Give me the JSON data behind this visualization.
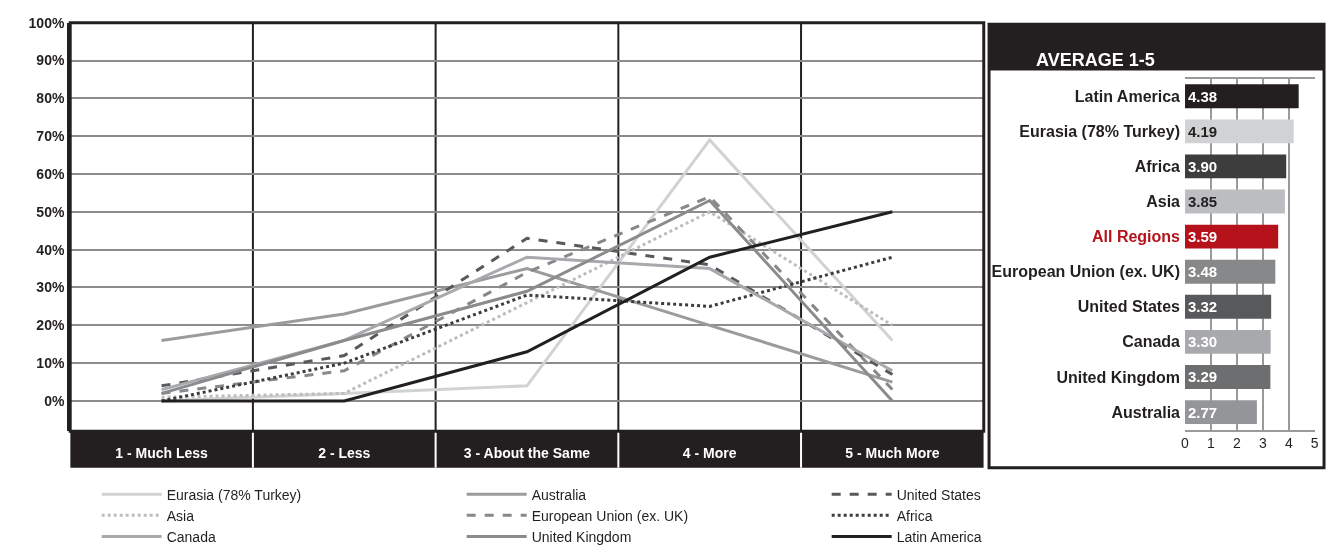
{
  "chart_data": [
    {
      "type": "line",
      "categories": [
        "1 - Much Less",
        "2 - Less",
        "3 - About the Same",
        "4 - More",
        "5 - Much More"
      ],
      "ylim": [
        -8,
        100
      ],
      "yticks": [
        {
          "value": 0,
          "label": "0%"
        },
        {
          "value": 10,
          "label": "10%"
        },
        {
          "value": 20,
          "label": "20%"
        },
        {
          "value": 30,
          "label": "30%"
        },
        {
          "value": 40,
          "label": "40%"
        },
        {
          "value": 50,
          "label": "50%"
        },
        {
          "value": 60,
          "label": "60%"
        },
        {
          "value": 70,
          "label": "70%"
        },
        {
          "value": 80,
          "label": "80%"
        },
        {
          "value": 90,
          "label": "90%"
        },
        {
          "value": 100,
          "label": "100%"
        }
      ],
      "grid": "y",
      "legend": "bottom",
      "marker": "none",
      "series": [
        {
          "name": "Eurasia (78% Turkey)",
          "color": "#d1d2d4",
          "line_style": "solid",
          "values": [
            0,
            2,
            4,
            69,
            16
          ]
        },
        {
          "name": "Australia",
          "color": "#9a9b9d",
          "line_style": "solid",
          "values": [
            16,
            23,
            35,
            20,
            5
          ]
        },
        {
          "name": "United States",
          "color": "#58595b",
          "line_style": "dashed",
          "values": [
            4,
            12,
            43,
            36,
            7
          ]
        },
        {
          "name": "Asia",
          "color": "#bcbdc0",
          "line_style": "dotted",
          "values": [
            1,
            2,
            26,
            50,
            20
          ]
        },
        {
          "name": "European Union (ex. UK)",
          "color": "#87888a",
          "line_style": "dashed",
          "values": [
            2,
            8,
            34,
            54,
            3
          ]
        },
        {
          "name": "Africa",
          "color": "#3d3d3d",
          "line_style": "dotted",
          "values": [
            0,
            10,
            28,
            25,
            38
          ]
        },
        {
          "name": "Canada",
          "color": "#a7a9ac",
          "line_style": "solid",
          "values": [
            3,
            16,
            38,
            35,
            8
          ]
        },
        {
          "name": "United Kingdom",
          "color": "#8a8b8d",
          "line_style": "solid",
          "values": [
            2,
            16,
            29,
            53,
            0
          ]
        },
        {
          "name": "Latin America",
          "color": "#231f20",
          "line_style": "solid",
          "values": [
            0,
            0,
            13,
            38,
            50
          ]
        }
      ]
    },
    {
      "type": "bar",
      "orientation": "horizontal",
      "title": "AVERAGE 1-5",
      "categories": [
        "Latin America",
        "Eurasia (78% Turkey)",
        "Africa",
        "Asia",
        "All Regions",
        "European Union (ex. UK)",
        "United States",
        "Canada",
        "United Kingdom",
        "Australia"
      ],
      "values": [
        4.38,
        4.19,
        3.9,
        3.85,
        3.59,
        3.48,
        3.32,
        3.3,
        3.29,
        2.77
      ],
      "value_labels": [
        "4.38",
        "4.19",
        "3.90",
        "3.85",
        "3.59",
        "3.48",
        "3.32",
        "3.30",
        "3.29",
        "2.77"
      ],
      "colors": [
        "#231f20",
        "#d1d2d4",
        "#3d3d3d",
        "#bcbdc0",
        "#b5121b",
        "#87888a",
        "#58595b",
        "#a7a9ac",
        "#6d6e70",
        "#939598"
      ],
      "xlim": [
        0,
        5
      ],
      "xticks": [
        0,
        1,
        2,
        3,
        4,
        5
      ],
      "grid": "x",
      "legend": false
    }
  ]
}
